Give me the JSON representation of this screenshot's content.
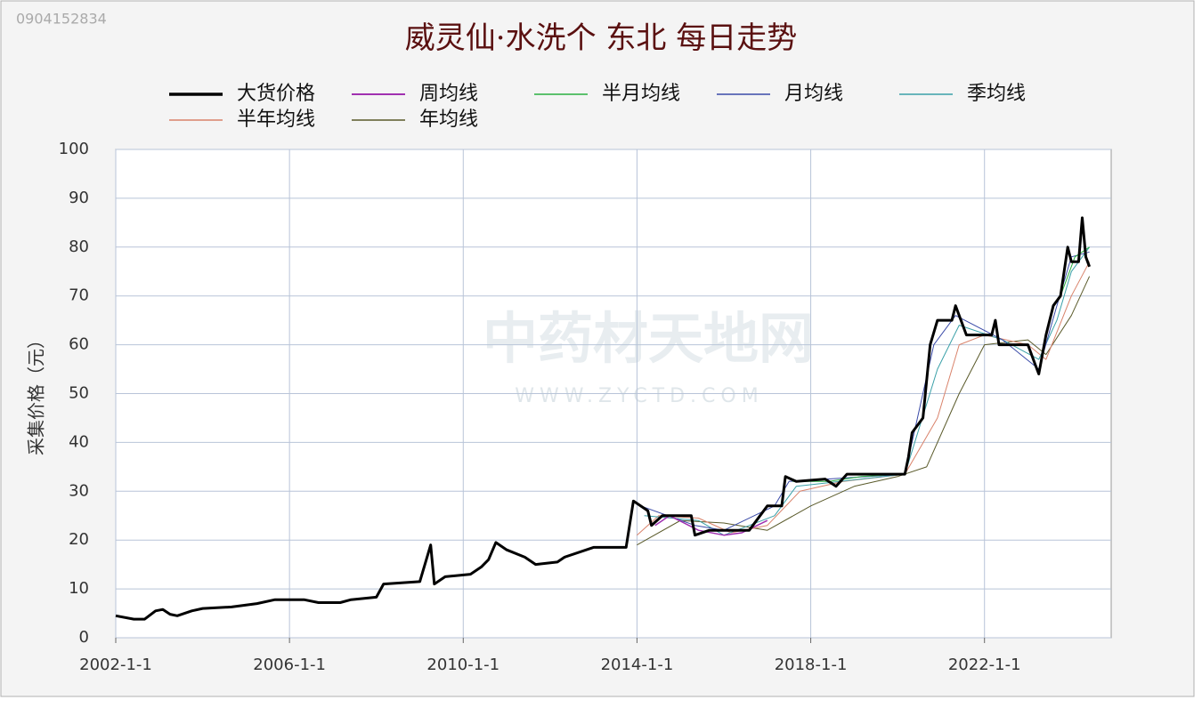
{
  "chart_data": {
    "type": "line",
    "title": "威灵仙·水洗个 东北 每日走势",
    "stamp": "0904152834",
    "watermark": [
      "中药材天地网",
      "WWW.ZYCTD.COM"
    ],
    "y_label": "采集价格（元）",
    "xlim": [
      "2002-1-1",
      "2024-12-1"
    ],
    "xticks": [
      "2002-1-1",
      "2006-1-1",
      "2010-1-1",
      "2014-1-1",
      "2018-1-1",
      "2022-1-1"
    ],
    "ylim": [
      0,
      100
    ],
    "yticks": [
      0,
      10,
      20,
      30,
      40,
      50,
      60,
      70,
      80,
      90,
      100
    ],
    "grid": true,
    "series": [
      {
        "name": "年均线",
        "color": "#5a5a2a",
        "width": 1,
        "x": [
          "2014-1-1",
          "2015-1-1",
          "2016-1-1",
          "2017-1-1",
          "2018-1-1",
          "2019-1-1",
          "2020-1-1",
          "2020-9-1",
          "2021-6-1",
          "2022-1-1",
          "2023-1-1",
          "2023-6-1",
          "2024-1-1",
          "2024-6-1"
        ],
        "values": [
          19,
          24,
          23.5,
          22,
          27,
          31,
          33,
          35,
          50,
          60,
          61,
          58,
          66,
          74
        ]
      },
      {
        "name": "半年均线",
        "color": "#d9826a",
        "width": 1,
        "x": [
          "2014-1-1",
          "2014-7-1",
          "2015-6-1",
          "2016-3-1",
          "2017-1-1",
          "2017-10-1",
          "2018-10-1",
          "2020-3-1",
          "2020-12-1",
          "2021-6-1",
          "2022-1-1",
          "2023-1-1",
          "2023-6-1",
          "2024-1-1",
          "2024-6-1"
        ],
        "values": [
          21,
          25,
          24.5,
          21.5,
          23,
          30,
          32,
          33.5,
          45,
          60,
          62,
          60,
          57,
          70,
          77
        ]
      },
      {
        "name": "季均线",
        "color": "#3aa0a8",
        "width": 1,
        "x": [
          "2014-3-1",
          "2015-6-1",
          "2016-1-1",
          "2017-3-1",
          "2017-9-1",
          "2020-3-1",
          "2020-12-1",
          "2021-6-1",
          "2022-6-1",
          "2023-4-1",
          "2023-9-1",
          "2024-1-1",
          "2024-6-1"
        ],
        "values": [
          25,
          24,
          21,
          25,
          31,
          33.5,
          55,
          64,
          61,
          57,
          65,
          75,
          80
        ]
      },
      {
        "name": "月均线",
        "color": "#3a4aa8",
        "width": 1,
        "x": [
          "2014-2-1",
          "2015-5-1",
          "2016-1-1",
          "2017-3-1",
          "2017-7-1",
          "2020-3-1",
          "2020-11-1",
          "2021-5-1",
          "2022-6-1",
          "2023-4-1",
          "2023-9-1",
          "2024-1-1",
          "2024-6-1"
        ],
        "values": [
          27,
          23,
          22,
          27,
          32,
          33.5,
          60,
          66,
          61,
          55,
          68,
          78,
          79
        ]
      },
      {
        "name": "半月均线",
        "color": "#2ab040",
        "width": 1,
        "x": [
          "2017-8-1",
          "2018-6-1",
          "2019-3-1",
          "2020-2-1",
          "2021-1-1",
          "2023-10-1",
          "2024-2-1",
          "2024-6-1"
        ],
        "values": [
          32,
          32,
          33,
          33.5,
          null,
          70,
          78,
          80
        ]
      },
      {
        "name": "周均线",
        "color": "#a030b0",
        "width": 1.5,
        "x": [
          "2014-6-1",
          "2014-10-1",
          "2015-6-1",
          "2016-1-1",
          "2016-6-1",
          "2017-1-1"
        ],
        "values": [
          23,
          25,
          22,
          21,
          21.5,
          24
        ]
      },
      {
        "name": "大货价格",
        "color": "#000000",
        "width": 3,
        "x": [
          "2002-1-1",
          "2002-6-1",
          "2002-9-1",
          "2002-12-1",
          "2003-2-1",
          "2003-4-1",
          "2003-6-1",
          "2003-10-1",
          "2004-1-1",
          "2004-9-1",
          "2005-4-1",
          "2005-9-1",
          "2006-5-1",
          "2006-9-1",
          "2007-3-1",
          "2007-6-1",
          "2008-1-1",
          "2008-3-1",
          "2009-1-1",
          "2009-2-1",
          "2009-4-1",
          "2009-5-1",
          "2009-8-1",
          "2010-3-1",
          "2010-6-1",
          "2010-8-1",
          "2010-10-1",
          "2011-1-1",
          "2011-6-1",
          "2011-9-1",
          "2012-3-1",
          "2012-5-1",
          "2013-1-1",
          "2013-10-1",
          "2013-12-1",
          "2014-4-1",
          "2014-5-1",
          "2014-8-1",
          "2015-4-1",
          "2015-5-1",
          "2015-9-1",
          "2016-8-1",
          "2017-1-1",
          "2017-5-1",
          "2017-6-1",
          "2017-9-1",
          "2018-5-1",
          "2018-8-1",
          "2018-11-1",
          "2020-3-1",
          "2020-4-1",
          "2020-5-1",
          "2020-8-1",
          "2020-10-1",
          "2020-12-1",
          "2021-4-1",
          "2021-5-1",
          "2021-8-1",
          "2022-3-1",
          "2022-4-1",
          "2022-5-1",
          "2023-1-1",
          "2023-3-1",
          "2023-4-1",
          "2023-6-1",
          "2023-8-1",
          "2023-10-1",
          "2023-12-1",
          "2024-1-1",
          "2024-3-1",
          "2024-4-1",
          "2024-5-1",
          "2024-6-1"
        ],
        "values": [
          4.5,
          3.8,
          3.8,
          5.5,
          5.8,
          4.8,
          4.5,
          5.5,
          6,
          6.3,
          7,
          7.8,
          7.8,
          7.2,
          7.2,
          7.8,
          8.3,
          11,
          11.5,
          14,
          19,
          11,
          12.5,
          13,
          14.5,
          16,
          19.5,
          18,
          16.5,
          15,
          15.5,
          16.5,
          18.5,
          18.5,
          28,
          26,
          23,
          25,
          25,
          21,
          22,
          22,
          27,
          27,
          33,
          32,
          32.5,
          31,
          33.5,
          33.5,
          37,
          42,
          45,
          60,
          65,
          65,
          68,
          62,
          62,
          65,
          60,
          60,
          56,
          54,
          62,
          68,
          70,
          80,
          77,
          77,
          86,
          78,
          76
        ]
      }
    ],
    "legend_order": [
      6,
      5,
      4,
      3,
      2,
      1,
      0
    ]
  }
}
